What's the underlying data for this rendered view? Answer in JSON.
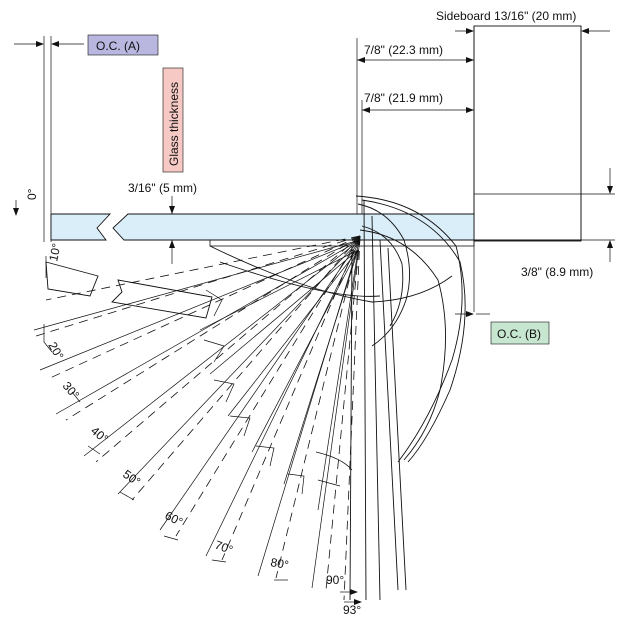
{
  "colors": {
    "oc_a_fill": "#b9b7e0",
    "oc_b_fill": "#c6e6cf",
    "glass_label_fill": "#f6c9c4",
    "glass_panel_fill": "#daeefa",
    "line": "#111111"
  },
  "labels": {
    "oc_a": "O.C. (A)",
    "oc_b": "O.C. (B)",
    "glass_thickness": "Glass thickness",
    "sideboard": "Sideboard 13/16\" (20 mm)",
    "dim_22_3": "7/8\" (22.3 mm)",
    "dim_21_9": "7/8\" (21.9 mm)",
    "dim_5mm": "3/16\" (5 mm)",
    "dim_8_9": "3/8\" (8.9 mm)"
  },
  "angles": [
    "0°",
    "10°",
    "20°",
    "30°",
    "40°",
    "50°",
    "60°",
    "70°",
    "80°",
    "90°",
    "93°"
  ]
}
